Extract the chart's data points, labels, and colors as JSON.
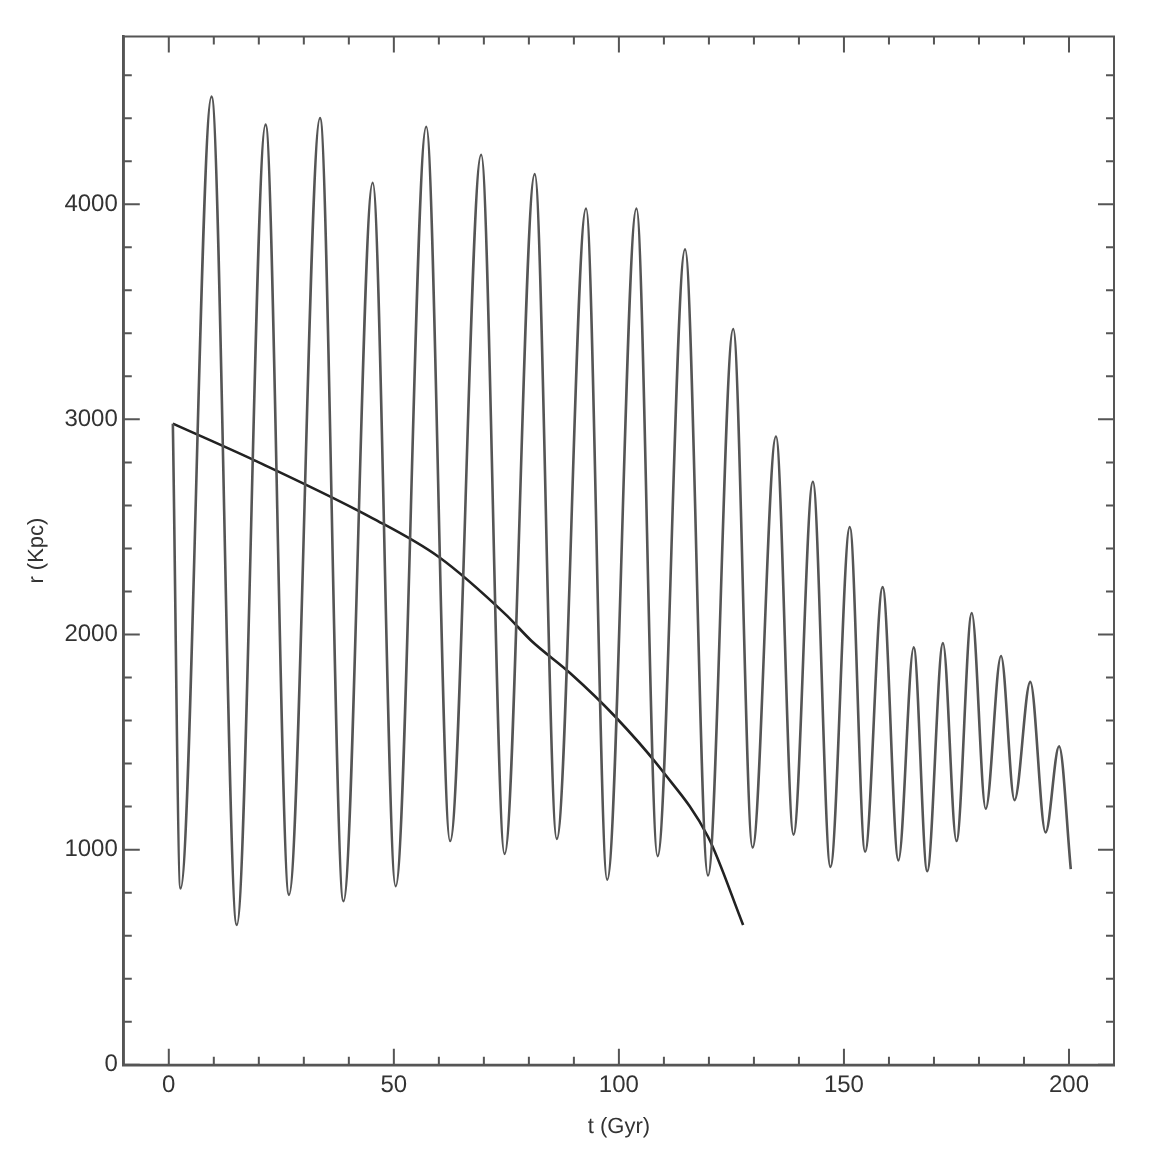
{
  "chart_data": {
    "type": "line",
    "xlabel": "t (Gyr)",
    "ylabel": "r (Kpc)",
    "xlim": [
      -10,
      210
    ],
    "ylim": [
      0,
      4780
    ],
    "xticks": [
      0,
      {
        "value": 10,
        "label": null
      },
      {
        "value": 20,
        "label": null
      },
      {
        "value": 30,
        "label": null
      },
      {
        "value": 40,
        "label": null
      },
      50,
      {
        "value": 60,
        "label": null
      },
      {
        "value": 70,
        "label": null
      },
      {
        "value": 80,
        "label": null
      },
      {
        "value": 90,
        "label": null
      },
      100,
      {
        "value": 110,
        "label": null
      },
      {
        "value": 120,
        "label": null
      },
      {
        "value": 130,
        "label": null
      },
      {
        "value": 140,
        "label": null
      },
      150,
      {
        "value": 160,
        "label": null
      },
      {
        "value": 170,
        "label": null
      },
      {
        "value": 180,
        "label": null
      },
      {
        "value": 190,
        "label": null
      },
      200
    ],
    "yticks": [
      0,
      {
        "value": 200,
        "label": null
      },
      {
        "value": 400,
        "label": null
      },
      {
        "value": 600,
        "label": null
      },
      {
        "value": 800,
        "label": null
      },
      1000,
      {
        "value": 1200,
        "label": null
      },
      {
        "value": 1400,
        "label": null
      },
      {
        "value": 1600,
        "label": null
      },
      {
        "value": 1800,
        "label": null
      },
      2000,
      {
        "value": 2200,
        "label": null
      },
      {
        "value": 2400,
        "label": null
      },
      {
        "value": 2600,
        "label": null
      },
      {
        "value": 2800,
        "label": null
      },
      3000,
      {
        "value": 3200,
        "label": null
      },
      {
        "value": 3400,
        "label": null
      },
      {
        "value": 3600,
        "label": null
      },
      {
        "value": 3800,
        "label": null
      },
      4000,
      {
        "value": 4200,
        "label": null
      },
      {
        "value": 4400,
        "label": null
      },
      {
        "value": 4600,
        "label": null
      }
    ],
    "grid": false,
    "legend": false,
    "marker": "none",
    "line_style": "solid",
    "series": [
      {
        "color": "#555555",
        "x": [
          0.9,
          2.6,
          9.5,
          15.1,
          21.5,
          26.7,
          33.6,
          38.8,
          45.3,
          50.4,
          57.2,
          62.5,
          69.4,
          74.6,
          81.3,
          86.2,
          92.7,
          97.4,
          103.9,
          108.6,
          114.7,
          119.8,
          125.4,
          129.7,
          134.9,
          138.8,
          143.1,
          147,
          151.3,
          154.7,
          158.6,
          162.1,
          165.5,
          168.5,
          172,
          175,
          178.4,
          181.5,
          184.9,
          187.9,
          191.4,
          194.8,
          197.8,
          200.4
        ],
        "values": [
          2980,
          820,
          4500,
          650,
          4370,
          790,
          4400,
          760,
          4100,
          830,
          4360,
          1040,
          4230,
          980,
          4140,
          1050,
          3980,
          860,
          3980,
          970,
          3790,
          880,
          3420,
          1010,
          2920,
          1070,
          2710,
          920,
          2500,
          990,
          2220,
          950,
          1940,
          900,
          1960,
          1040,
          2100,
          1190,
          1900,
          1230,
          1780,
          1080,
          1480,
          910
        ]
      },
      {
        "color": "#222222",
        "x": [
          0.9,
          20,
          45.3,
          60,
          75,
          80.6,
          89.2,
          99.1,
          109.5,
          119.8,
          127.6
        ],
        "values": [
          2980,
          2800,
          2540,
          2360,
          2090,
          1970,
          1820,
          1620,
          1370,
          1060,
          650
        ]
      }
    ]
  }
}
